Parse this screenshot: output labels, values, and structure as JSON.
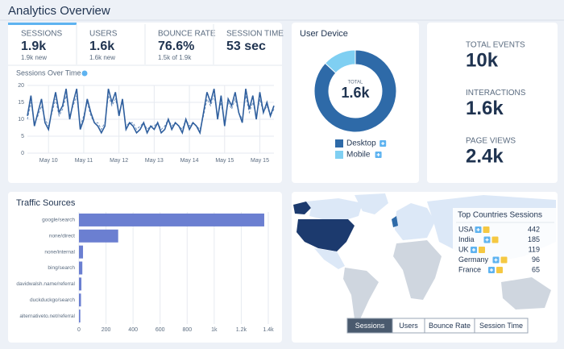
{
  "header": {
    "title": "Analytics Overview"
  },
  "tabs": [
    {
      "label": "SESSIONS",
      "value": "1.9k",
      "sub": "1.9k new"
    },
    {
      "label": "USERS",
      "value": "1.6k",
      "sub": "1.6k new"
    },
    {
      "label": "BOUNCE RATE",
      "value": "76.6%",
      "sub": "1.5k of 1.9k"
    },
    {
      "label": "SESSION TIME",
      "value": "53 sec"
    }
  ],
  "sessions_chart": {
    "type": "line",
    "title": "Sessions Over Time",
    "xlim": [
      0,
      70
    ],
    "xticks": [
      {
        "value": 6,
        "label": "May 10"
      },
      {
        "value": 16,
        "label": "May 11"
      },
      {
        "value": 26,
        "label": "May 12"
      },
      {
        "value": 36,
        "label": "May 13"
      },
      {
        "value": 46,
        "label": "May 14"
      },
      {
        "value": 56,
        "label": "May 15"
      },
      {
        "value": 66,
        "label": "May 15"
      }
    ],
    "ylim": [
      0,
      20
    ],
    "yticks": [
      0,
      5,
      10,
      15,
      20
    ],
    "grid": true,
    "series": [
      {
        "color": "#2f5f9e",
        "values": [
          11,
          17,
          8,
          12,
          16,
          9,
          7,
          13,
          18,
          12,
          14,
          19,
          10,
          15,
          19,
          7,
          10,
          16,
          12,
          9,
          8,
          6,
          8,
          19,
          15,
          18,
          11,
          16,
          7,
          9,
          8,
          6,
          7,
          9,
          6,
          8,
          7,
          9,
          6,
          7,
          10,
          7,
          9,
          8,
          6,
          10,
          7,
          9,
          8,
          6,
          12,
          18,
          15,
          19,
          10,
          17,
          8,
          16,
          14,
          18,
          12,
          9,
          19,
          13,
          17,
          10,
          18,
          12,
          15,
          11,
          14
        ]
      },
      {
        "color": "#2f5f9e",
        "dash": true,
        "values": [
          10,
          15,
          9,
          11,
          14,
          10,
          8,
          12,
          16,
          11,
          13,
          17,
          11,
          14,
          17,
          8,
          11,
          15,
          11,
          9,
          9,
          7,
          9,
          17,
          14,
          16,
          12,
          15,
          8,
          9,
          9,
          7,
          8,
          9,
          7,
          8,
          8,
          9,
          7,
          8,
          10,
          8,
          9,
          8,
          7,
          10,
          8,
          9,
          8,
          7,
          11,
          16,
          14,
          17,
          11,
          15,
          9,
          15,
          13,
          16,
          12,
          10,
          17,
          12,
          15,
          11,
          16,
          12,
          14,
          11,
          13
        ]
      }
    ]
  },
  "device_chart": {
    "type": "donut",
    "title": "User Device",
    "center_label": "TOTAL",
    "center_value": "1.6k",
    "categories": [
      "Desktop",
      "Mobile"
    ],
    "values": [
      1390,
      210
    ],
    "colors": [
      "#2e6aa8",
      "#7fcff2"
    ]
  },
  "stats": [
    {
      "label": "TOTAL EVENTS",
      "value": "10k"
    },
    {
      "label": "INTERACTIONS",
      "value": "1.6k"
    },
    {
      "label": "PAGE VIEWS",
      "value": "2.4k"
    }
  ],
  "traffic_chart": {
    "type": "hbar",
    "title": "Traffic Sources",
    "categories": [
      "google/search",
      "none/direct",
      "none/internal",
      "bing/search",
      "davidwalsh.name/referral",
      "duckduckgo/search",
      "alternativeto.net/referral"
    ],
    "values": [
      1370,
      290,
      30,
      25,
      18,
      15,
      10
    ],
    "color": "#6b7fd1",
    "xlim": [
      0,
      1400
    ],
    "xticks": [
      0,
      200,
      400,
      600,
      800,
      {
        "value": 1000,
        "label": "1k"
      },
      {
        "value": 1200,
        "label": "1.2k"
      },
      {
        "value": 1400,
        "label": "1.4k"
      }
    ],
    "grid": true
  },
  "countries": {
    "title": "Top Countries Sessions",
    "rows": [
      {
        "name": "USA",
        "value": 442
      },
      {
        "name": "India",
        "value": 185
      },
      {
        "name": "UK",
        "value": 119
      },
      {
        "name": "Germany",
        "value": 96
      },
      {
        "name": "France",
        "value": 65
      }
    ]
  },
  "map_buttons": [
    "Sessions",
    "Users",
    "Bounce Rate",
    "Session Time"
  ],
  "active_button": 0
}
